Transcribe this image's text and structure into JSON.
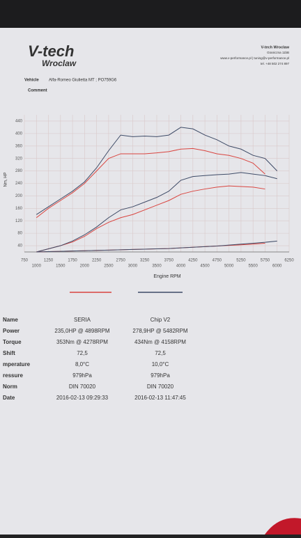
{
  "header": {
    "logo": "V-tech",
    "logo_sub": "Wroclaw",
    "company": "V-tech Wroclaw",
    "address": "Graniczna 11bB",
    "contact": "www.v-performance.pl | tuning@v-performance.pl",
    "phone": "tel. +48 502 274 897"
  },
  "vehicle": {
    "label": "Vehicle",
    "value": "Alfa-Romeo Giulietta MT ; PO759G6",
    "comment": "Comment"
  },
  "chart_data": {
    "type": "line",
    "xlabel": "Engine RPM",
    "ylabel": "Nm, HP",
    "x": [
      1000,
      1250,
      1500,
      1750,
      2000,
      2250,
      2500,
      2750,
      3000,
      3250,
      3500,
      3750,
      4000,
      4250,
      4500,
      4750,
      5000,
      5250,
      5500,
      5750,
      6000
    ],
    "series": [
      {
        "color": "#d9443f",
        "values": [
          130,
          160,
          185,
          210,
          240,
          280,
          320,
          335,
          335,
          335,
          338,
          342,
          350,
          352,
          345,
          335,
          330,
          320,
          305,
          270,
          null
        ]
      },
      {
        "color": "#d9443f",
        "values": [
          20,
          30,
          40,
          52,
          70,
          95,
          115,
          130,
          140,
          155,
          170,
          185,
          205,
          215,
          222,
          228,
          232,
          230,
          228,
          222,
          null
        ]
      },
      {
        "color": "#3d4a66",
        "values": [
          140,
          165,
          190,
          215,
          245,
          290,
          345,
          395,
          390,
          392,
          390,
          395,
          420,
          415,
          395,
          380,
          360,
          350,
          330,
          320,
          280
        ]
      },
      {
        "color": "#3d4a66",
        "values": [
          20,
          30,
          40,
          55,
          75,
          100,
          130,
          155,
          165,
          180,
          195,
          215,
          250,
          262,
          265,
          268,
          270,
          275,
          270,
          265,
          255
        ]
      },
      {
        "color": "#d9443f",
        "values": [
          20,
          21,
          22,
          23,
          24,
          25,
          26,
          27,
          28,
          29,
          30,
          31,
          33,
          35,
          37,
          39,
          41,
          43,
          45,
          48,
          null
        ]
      },
      {
        "color": "#3d4a66",
        "values": [
          20,
          21,
          22,
          23,
          24,
          25,
          26,
          27,
          28,
          29,
          30,
          31,
          33,
          35,
          37,
          39,
          42,
          45,
          48,
          51,
          55
        ]
      }
    ],
    "xlim": [
      750,
      6250
    ],
    "xticks": [
      750,
      1000,
      1250,
      1500,
      1750,
      2000,
      2250,
      2500,
      2750,
      3000,
      3250,
      3500,
      3750,
      4000,
      4250,
      4500,
      4750,
      5000,
      5250,
      5500,
      5750,
      6000,
      6250
    ],
    "ylim": [
      20,
      460
    ],
    "yticks": [
      40,
      80,
      120,
      160,
      200,
      240,
      280,
      320,
      360,
      400,
      440
    ],
    "grid": true
  },
  "table": {
    "rows": [
      [
        "Name",
        "SERIA",
        "Chip V2"
      ],
      [
        "Power",
        "235,0HP @ 4898RPM",
        "278,9HP @ 5482RPM"
      ],
      [
        "Torque",
        "353Nm @ 4278RPM",
        "434Nm @ 4158RPM"
      ],
      [
        "Shift",
        "72,5",
        "72,5"
      ],
      [
        "mperature",
        "8,0°C",
        "10,0°C"
      ],
      [
        "ressure",
        "979hPa",
        "979hPa"
      ],
      [
        "Norm",
        "DIN 70020",
        "DIN 70020"
      ],
      [
        "Date",
        "2016-02-13 09:29:33",
        "2016-02-13 11:47:45"
      ]
    ]
  }
}
